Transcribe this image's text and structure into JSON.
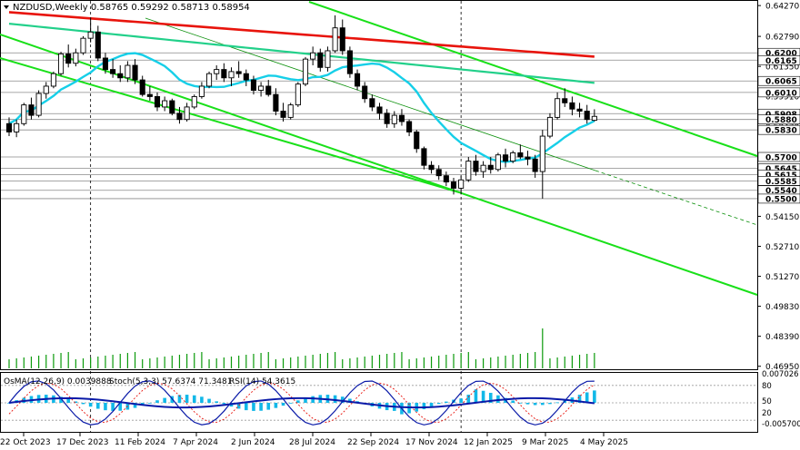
{
  "header": {
    "symbol_line": "NZDUSD,Weekly  0.58765 0.59292 0.58713 0.58954"
  },
  "indicator_header": {
    "osma": "OsMA(12,26,9) 0.0039888",
    "stoch": "Stoch(5,3,3) 57.6374 71.3481",
    "rsi": "RSI(14) 54.3615"
  },
  "colors": {
    "background": "#ffffff",
    "frame": "#000000",
    "ma_red": "#e8140c",
    "ma_green_light": "#22d08a",
    "ma_cyan": "#16cfe8",
    "channel_green": "#19e019",
    "channel_dashed": "#0a8f0a",
    "osma_bars": "#12b8e8",
    "stoch_main": "#0a1aa8",
    "stoch_signal": "#e8140c",
    "volume": "#0a9a0a"
  },
  "chart_data": {
    "type": "candlestick",
    "timeframe": "Weekly",
    "ylim": [
      0.4685,
      0.6445
    ],
    "price_axis_labels": [
      "0.64270",
      "0.62790",
      "0.61350",
      "0.59910",
      "0.58470",
      "0.57030",
      "0.55590",
      "0.54150",
      "0.52710",
      "0.51270",
      "0.49830",
      "0.48390",
      "0.46950"
    ],
    "x_axis_labels": [
      "22 Oct 2023",
      "17 Dec 2023",
      "11 Feb 2024",
      "7 Apr 2024",
      "2 Jun 2024",
      "28 Jul 2024",
      "22 Sep 2024",
      "17 Nov 2024",
      "12 Jan 2025",
      "9 Mar 2025",
      "4 May 2025"
    ],
    "level_labels": [
      "0.6200",
      "0.6165",
      "0.6065",
      "0.6010",
      "0.5908",
      "0.5880",
      "0.5830",
      "0.5700",
      "0.5645",
      "0.5615",
      "0.5585",
      "0.5540",
      "0.5500"
    ],
    "levels": [
      0.62,
      0.6165,
      0.6065,
      0.601,
      0.5908,
      0.588,
      0.583,
      0.57,
      0.5645,
      0.5615,
      0.5585,
      0.554,
      0.55
    ],
    "candles": [
      [
        0.586,
        0.589,
        0.58,
        0.582
      ],
      [
        0.582,
        0.588,
        0.5795,
        0.586
      ],
      [
        0.586,
        0.596,
        0.585,
        0.595
      ],
      [
        0.595,
        0.5985,
        0.588,
        0.59
      ],
      [
        0.59,
        0.602,
        0.589,
        0.6005
      ],
      [
        0.6005,
        0.606,
        0.598,
        0.604
      ],
      [
        0.604,
        0.611,
        0.603,
        0.61
      ],
      [
        0.61,
        0.6205,
        0.609,
        0.6195
      ],
      [
        0.6195,
        0.624,
        0.613,
        0.615
      ],
      [
        0.615,
        0.622,
        0.6135,
        0.62
      ],
      [
        0.62,
        0.628,
        0.619,
        0.627
      ],
      [
        0.627,
        0.637,
        0.625,
        0.63
      ],
      [
        0.63,
        0.633,
        0.616,
        0.6175
      ],
      [
        0.6175,
        0.62,
        0.61,
        0.612
      ],
      [
        0.612,
        0.617,
        0.608,
        0.61
      ],
      [
        0.61,
        0.614,
        0.606,
        0.608
      ],
      [
        0.608,
        0.616,
        0.606,
        0.614
      ],
      [
        0.614,
        0.617,
        0.605,
        0.607
      ],
      [
        0.607,
        0.609,
        0.599,
        0.6
      ],
      [
        0.6,
        0.604,
        0.597,
        0.599
      ],
      [
        0.599,
        0.601,
        0.592,
        0.594
      ],
      [
        0.594,
        0.599,
        0.592,
        0.597
      ],
      [
        0.597,
        0.598,
        0.59,
        0.591
      ],
      [
        0.591,
        0.594,
        0.586,
        0.588
      ],
      [
        0.588,
        0.596,
        0.587,
        0.594
      ],
      [
        0.594,
        0.6,
        0.593,
        0.599
      ],
      [
        0.599,
        0.606,
        0.598,
        0.604
      ],
      [
        0.604,
        0.611,
        0.603,
        0.61
      ],
      [
        0.61,
        0.614,
        0.607,
        0.612
      ],
      [
        0.612,
        0.615,
        0.606,
        0.608
      ],
      [
        0.608,
        0.613,
        0.604,
        0.611
      ],
      [
        0.611,
        0.616,
        0.608,
        0.61
      ],
      [
        0.61,
        0.612,
        0.604,
        0.607
      ],
      [
        0.607,
        0.609,
        0.6,
        0.602
      ],
      [
        0.602,
        0.606,
        0.599,
        0.604
      ],
      [
        0.604,
        0.607,
        0.599,
        0.6
      ],
      [
        0.6,
        0.603,
        0.59,
        0.592
      ],
      [
        0.592,
        0.596,
        0.587,
        0.589
      ],
      [
        0.589,
        0.596,
        0.588,
        0.595
      ],
      [
        0.595,
        0.606,
        0.594,
        0.605
      ],
      [
        0.605,
        0.618,
        0.604,
        0.617
      ],
      [
        0.617,
        0.623,
        0.614,
        0.62
      ],
      [
        0.62,
        0.622,
        0.611,
        0.613
      ],
      [
        0.613,
        0.623,
        0.611,
        0.621
      ],
      [
        0.621,
        0.638,
        0.62,
        0.632
      ],
      [
        0.632,
        0.636,
        0.619,
        0.621
      ],
      [
        0.621,
        0.623,
        0.608,
        0.61
      ],
      [
        0.61,
        0.612,
        0.602,
        0.604
      ],
      [
        0.604,
        0.606,
        0.596,
        0.598
      ],
      [
        0.598,
        0.6,
        0.592,
        0.594
      ],
      [
        0.594,
        0.596,
        0.588,
        0.591
      ],
      [
        0.591,
        0.593,
        0.584,
        0.586
      ],
      [
        0.586,
        0.592,
        0.584,
        0.59
      ],
      [
        0.59,
        0.593,
        0.585,
        0.587
      ],
      [
        0.587,
        0.588,
        0.58,
        0.582
      ],
      [
        0.582,
        0.583,
        0.572,
        0.574
      ],
      [
        0.574,
        0.575,
        0.564,
        0.566
      ],
      [
        0.566,
        0.568,
        0.562,
        0.564
      ],
      [
        0.564,
        0.566,
        0.559,
        0.561
      ],
      [
        0.561,
        0.563,
        0.556,
        0.558
      ],
      [
        0.558,
        0.56,
        0.552,
        0.555
      ],
      [
        0.555,
        0.561,
        0.552,
        0.559
      ],
      [
        0.559,
        0.57,
        0.558,
        0.568
      ],
      [
        0.568,
        0.571,
        0.561,
        0.563
      ],
      [
        0.563,
        0.568,
        0.56,
        0.566
      ],
      [
        0.566,
        0.57,
        0.562,
        0.564
      ],
      [
        0.564,
        0.572,
        0.563,
        0.571
      ],
      [
        0.571,
        0.574,
        0.565,
        0.568
      ],
      [
        0.568,
        0.573,
        0.567,
        0.572
      ],
      [
        0.572,
        0.576,
        0.569,
        0.57
      ],
      [
        0.57,
        0.573,
        0.566,
        0.569
      ],
      [
        0.569,
        0.571,
        0.56,
        0.563
      ],
      [
        0.563,
        0.583,
        0.55,
        0.58
      ],
      [
        0.58,
        0.591,
        0.579,
        0.589
      ],
      [
        0.589,
        0.601,
        0.588,
        0.598
      ],
      [
        0.598,
        0.603,
        0.594,
        0.596
      ],
      [
        0.596,
        0.599,
        0.59,
        0.593
      ],
      [
        0.593,
        0.596,
        0.589,
        0.592
      ],
      [
        0.592,
        0.595,
        0.586,
        0.588
      ],
      [
        0.5876,
        0.5929,
        0.5871,
        0.5895
      ]
    ]
  }
}
